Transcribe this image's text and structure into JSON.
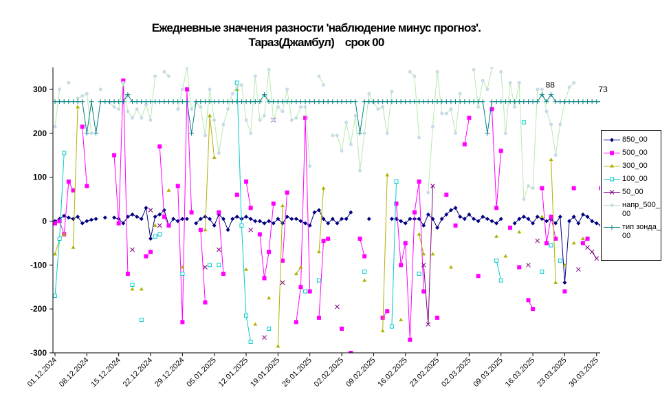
{
  "chart_data": {
    "type": "line",
    "title": "Ежедневные значения разности 'наблюдение минус прогноз'.",
    "subtitle": "Тараз(Джамбул)    срок 00",
    "categories": [
      "01.12.2024",
      null,
      null,
      null,
      null,
      null,
      null,
      "08.12.2024",
      null,
      null,
      null,
      null,
      null,
      null,
      "15.12.2024",
      null,
      null,
      null,
      null,
      null,
      null,
      "22.12.2024",
      null,
      null,
      null,
      null,
      null,
      null,
      "29.12.2024",
      null,
      null,
      null,
      null,
      null,
      null,
      "05.01.2025",
      null,
      null,
      null,
      null,
      null,
      null,
      "12.01.2025",
      null,
      null,
      null,
      null,
      null,
      null,
      "19.01.2025",
      null,
      null,
      null,
      null,
      null,
      null,
      "26.01.2025",
      null,
      null,
      null,
      null,
      null,
      null,
      "02.02.2025",
      null,
      null,
      null,
      null,
      null,
      null,
      "09.02.2025",
      null,
      null,
      null,
      null,
      null,
      null,
      "16.02.2025",
      null,
      null,
      null,
      null,
      null,
      null,
      "23.02.2025",
      null,
      null,
      null,
      null,
      null,
      null,
      "02.03.2025",
      null,
      null,
      null,
      null,
      null,
      null,
      "09.03.2025",
      null,
      null,
      null,
      null,
      null,
      null,
      "16.03.2025",
      null,
      null,
      null,
      null,
      null,
      null,
      "23.03.2025",
      null,
      null,
      null,
      null,
      null,
      null,
      "30.03.2025",
      null
    ],
    "ylim": [
      -300,
      350
    ],
    "yticks": [
      -300,
      -200,
      -100,
      0,
      100,
      200,
      300
    ],
    "series": [
      {
        "name": "850_00",
        "color": "#000080",
        "marker": "diamond",
        "values": [
          0,
          5,
          12,
          8,
          5,
          10,
          -5,
          0,
          3,
          5,
          null,
          8,
          null,
          8,
          5,
          -5,
          10,
          15,
          10,
          5,
          30,
          -40,
          10,
          15,
          25,
          -10,
          5,
          0,
          5,
          5,
          null,
          -5,
          5,
          10,
          5,
          -10,
          15,
          5,
          -20,
          5,
          10,
          5,
          10,
          5,
          0,
          0,
          -5,
          0,
          -5,
          5,
          -5,
          10,
          5,
          5,
          0,
          -5,
          -10,
          20,
          25,
          5,
          -5,
          5,
          -5,
          5,
          5,
          20,
          null,
          null,
          null,
          5,
          null,
          null,
          null,
          null,
          5,
          5,
          0,
          -5,
          5,
          5,
          5,
          -10,
          15,
          5,
          -15,
          5,
          15,
          25,
          30,
          10,
          5,
          15,
          5,
          0,
          10,
          5,
          0,
          -5,
          5,
          null,
          null,
          -5,
          5,
          10,
          5,
          -5,
          10,
          5,
          0,
          5,
          -5,
          10,
          -140,
          0,
          10,
          -5,
          15,
          10,
          0,
          -5,
          -10
        ]
      },
      {
        "name": "500_00",
        "color": "#ff00ff",
        "marker": "square",
        "values": [
          -5,
          0,
          -30,
          90,
          70,
          null,
          215,
          80,
          null,
          null,
          null,
          null,
          null,
          150,
          -5,
          320,
          -120,
          null,
          null,
          null,
          -80,
          -70,
          null,
          170,
          10,
          -10,
          null,
          80,
          -230,
          300,
          20,
          null,
          -20,
          -185,
          null,
          null,
          20,
          -120,
          null,
          null,
          60,
          null,
          90,
          30,
          null,
          -30,
          -130,
          -70,
          40,
          null,
          -90,
          65,
          null,
          -230,
          -150,
          235,
          -160,
          null,
          -220,
          -45,
          -40,
          null,
          null,
          -245,
          null,
          -300,
          null,
          -40,
          -80,
          null,
          null,
          null,
          -220,
          -205,
          null,
          40,
          -100,
          -50,
          -270,
          20,
          90,
          -160,
          null,
          null,
          -220,
          null,
          60,
          null,
          -10,
          null,
          175,
          235,
          null,
          -125,
          null,
          null,
          255,
          30,
          160,
          null,
          -15,
          null,
          -105,
          null,
          -180,
          -200,
          null,
          75,
          -50,
          10,
          -40,
          null,
          -160,
          null,
          75,
          null,
          -50,
          -40,
          null,
          null,
          75
        ]
      },
      {
        "name": "300_00",
        "color": "#b0b000",
        "marker": "triangle",
        "values": [
          -75,
          -40,
          -30,
          null,
          -60,
          260,
          null,
          null,
          null,
          null,
          null,
          null,
          null,
          null,
          null,
          null,
          null,
          -155,
          null,
          -155,
          null,
          null,
          -10,
          null,
          null,
          70,
          null,
          null,
          -105,
          null,
          null,
          null,
          null,
          -20,
          240,
          145,
          null,
          null,
          null,
          null,
          300,
          null,
          -110,
          null,
          -235,
          null,
          null,
          -175,
          null,
          -285,
          35,
          null,
          null,
          -120,
          -105,
          null,
          null,
          null,
          -70,
          75,
          null,
          null,
          null,
          null,
          null,
          null,
          null,
          null,
          -135,
          null,
          null,
          null,
          -250,
          105,
          null,
          null,
          -225,
          null,
          null,
          null,
          -30,
          -75,
          null,
          -75,
          null,
          null,
          null,
          -105,
          null,
          null,
          null,
          null,
          null,
          null,
          null,
          null,
          null,
          -35,
          null,
          -80,
          null,
          null,
          -25,
          null,
          null,
          null,
          null,
          10,
          null,
          140,
          -140,
          null,
          -100,
          null,
          -50,
          null,
          -40,
          null,
          null,
          null,
          null
        ]
      },
      {
        "name": "100_00",
        "color": "#00cccc",
        "marker": "opensquare",
        "values": [
          -170,
          -40,
          155,
          null,
          null,
          null,
          null,
          null,
          null,
          null,
          null,
          null,
          null,
          null,
          null,
          null,
          null,
          -145,
          null,
          -225,
          null,
          null,
          -35,
          -30,
          null,
          null,
          null,
          null,
          -120,
          null,
          null,
          null,
          null,
          null,
          -100,
          null,
          -100,
          null,
          null,
          null,
          315,
          -10,
          -215,
          -275,
          null,
          null,
          null,
          -245,
          null,
          null,
          null,
          null,
          null,
          null,
          null,
          -160,
          null,
          null,
          -135,
          null,
          null,
          null,
          null,
          null,
          null,
          null,
          null,
          null,
          -115,
          null,
          null,
          null,
          null,
          null,
          -240,
          90,
          null,
          null,
          null,
          null,
          -120,
          null,
          null,
          null,
          null,
          null,
          null,
          null,
          null,
          null,
          null,
          null,
          null,
          null,
          null,
          null,
          null,
          -90,
          -135,
          null,
          null,
          null,
          null,
          225,
          null,
          null,
          null,
          -115,
          null,
          -55,
          null,
          -90,
          null,
          null,
          null,
          null,
          null,
          null,
          null,
          null,
          null
        ]
      },
      {
        "name": "50_00",
        "color": "#800080",
        "marker": "x",
        "values": [
          null,
          null,
          null,
          null,
          null,
          null,
          null,
          null,
          null,
          null,
          null,
          null,
          null,
          null,
          null,
          null,
          null,
          -65,
          null,
          null,
          null,
          25,
          null,
          -10,
          null,
          null,
          null,
          null,
          null,
          null,
          null,
          null,
          null,
          -105,
          null,
          null,
          -65,
          null,
          null,
          null,
          null,
          null,
          null,
          -20,
          null,
          null,
          -265,
          null,
          230,
          null,
          -140,
          null,
          null,
          null,
          null,
          null,
          null,
          null,
          null,
          null,
          null,
          null,
          -195,
          null,
          null,
          null,
          null,
          null,
          null,
          null,
          null,
          null,
          null,
          null,
          null,
          null,
          null,
          null,
          null,
          null,
          null,
          -100,
          -235,
          80,
          null,
          null,
          null,
          null,
          null,
          null,
          null,
          null,
          null,
          null,
          null,
          null,
          null,
          null,
          null,
          null,
          null,
          null,
          null,
          null,
          -100,
          null,
          -45,
          null,
          null,
          null,
          null,
          null,
          null,
          null,
          null,
          -110,
          null,
          -60,
          -70,
          -85,
          null
        ]
      },
      {
        "name": "напр_500_00",
        "color": "#c8dce6",
        "marker": "dot",
        "values": [
          215,
          300,
          null,
          315,
          null,
          280,
          285,
          290,
          200,
          null,
          300,
          null,
          270,
          260,
          255,
          315,
          250,
          235,
          255,
          235,
          265,
          230,
          330,
          null,
          340,
          330,
          null,
          255,
          300,
          350,
          255,
          270,
          260,
          195,
          300,
          230,
          155,
          220,
          255,
          290,
          305,
          310,
          230,
          200,
          330,
          230,
          240,
          345,
          230,
          260,
          250,
          300,
          230,
          235,
          260,
          260,
          125,
          null,
          330,
          310,
          null,
          195,
          195,
          160,
          225,
          175,
          240,
          115,
          200,
          290,
          270,
          255,
          260,
          200,
          295,
          null,
          null,
          null,
          340,
          330,
          190,
          null,
          65,
          215,
          340,
          245,
          245,
          255,
          200,
          290,
          null,
          null,
          345,
          260,
          320,
          300,
          350,
          null,
          340,
          200,
          315,
          260,
          315,
          50,
          80,
          75,
          300,
          300,
          250,
          220,
          150,
          220,
          270,
          305,
          315,
          null,
          null,
          null,
          null,
          null,
          null
        ]
      },
      {
        "name": "тип зонда_00",
        "color": "#008080",
        "marker": "plus",
        "values": [
          272,
          272,
          272,
          272,
          272,
          272,
          272,
          200,
          272,
          200,
          272,
          272,
          272,
          272,
          272,
          272,
          288,
          272,
          272,
          272,
          272,
          272,
          272,
          272,
          272,
          272,
          272,
          272,
          272,
          272,
          200,
          272,
          272,
          272,
          272,
          272,
          272,
          272,
          272,
          272,
          272,
          272,
          272,
          272,
          272,
          272,
          288,
          272,
          272,
          272,
          272,
          272,
          272,
          272,
          272,
          272,
          272,
          272,
          272,
          272,
          272,
          272,
          272,
          272,
          272,
          272,
          272,
          200,
          272,
          272,
          272,
          272,
          272,
          272,
          272,
          272,
          272,
          272,
          272,
          272,
          272,
          272,
          272,
          272,
          272,
          272,
          272,
          272,
          272,
          272,
          272,
          272,
          272,
          272,
          272,
          200,
          272,
          272,
          272,
          272,
          272,
          272,
          272,
          272,
          272,
          272,
          272,
          288,
          272,
          288,
          272,
          272,
          272,
          272,
          272,
          272,
          272,
          272,
          272,
          272,
          272
        ]
      }
    ],
    "annotations": [
      "88",
      "73"
    ]
  }
}
